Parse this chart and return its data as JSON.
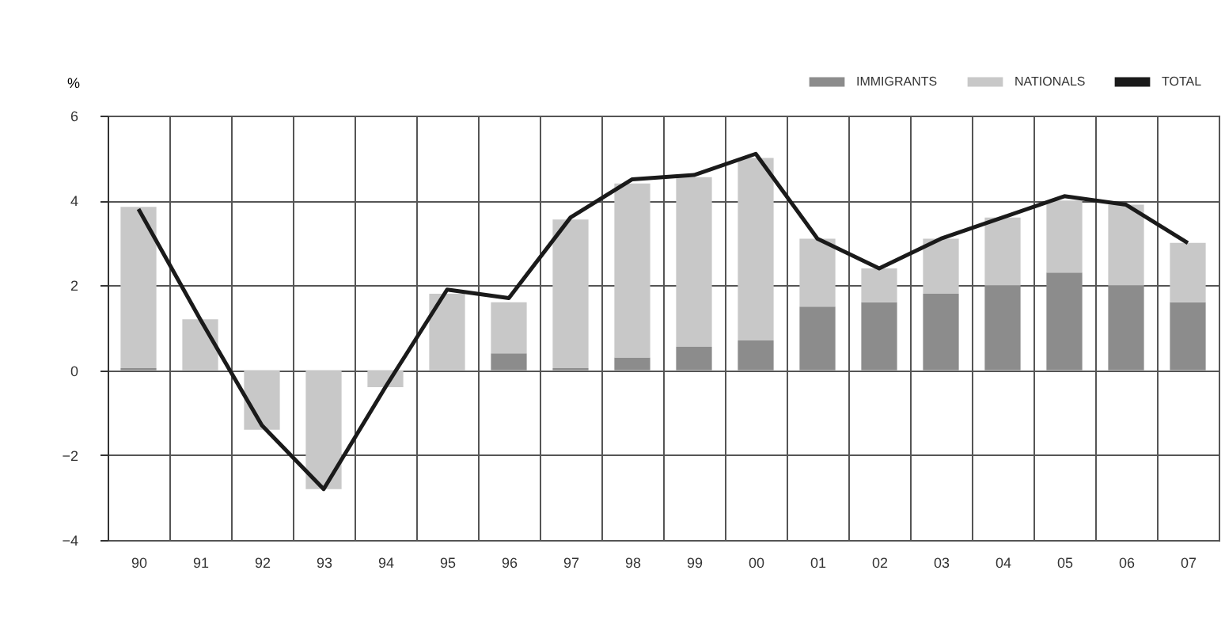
{
  "chart_data": {
    "type": "bar",
    "stacked": true,
    "ylabel": "%",
    "categories": [
      "90",
      "91",
      "92",
      "93",
      "94",
      "95",
      "96",
      "97",
      "98",
      "99",
      "00",
      "01",
      "02",
      "03",
      "04",
      "05",
      "06",
      "07"
    ],
    "series": [
      {
        "name": "IMMIGRANTS",
        "color": "#8c8c8c",
        "values": [
          0.05,
          0,
          0,
          0,
          0,
          0,
          0.4,
          0.05,
          0.3,
          0.55,
          0.7,
          1.5,
          1.6,
          1.8,
          2.0,
          2.3,
          2.0,
          1.6
        ]
      },
      {
        "name": "NATIONALS",
        "color": "#c8c8c8",
        "values": [
          3.8,
          1.2,
          -1.4,
          -2.8,
          -0.4,
          1.8,
          1.2,
          3.5,
          4.1,
          4.0,
          4.3,
          1.6,
          0.8,
          1.3,
          1.6,
          1.7,
          1.9,
          1.4
        ]
      },
      {
        "name": "TOTAL",
        "type": "line",
        "color": "#1a1a1a",
        "values": [
          3.8,
          1.2,
          -1.3,
          -2.8,
          -0.4,
          1.9,
          1.7,
          3.6,
          4.5,
          4.6,
          5.1,
          3.1,
          2.4,
          3.1,
          3.6,
          4.1,
          3.9,
          3.0
        ]
      }
    ],
    "ylim": [
      -4,
      6
    ],
    "yticks": [
      -4,
      -2,
      0,
      2,
      4,
      6
    ],
    "grid": true,
    "legend": "top right"
  }
}
